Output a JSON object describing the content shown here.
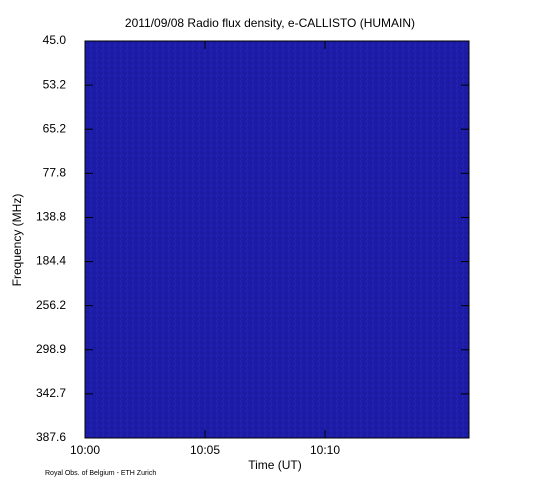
{
  "chart_data": {
    "type": "spectrogram",
    "title": "2011/09/08  Radio flux density, e-CALLISTO (HUMAIN)",
    "xlabel": "Time (UT)",
    "ylabel": "Frequency (MHz)",
    "footer": "Royal Obs. of Belgium - ETH Zurich",
    "xlim": [
      "10:00",
      "10:16"
    ],
    "xticks": [
      "10:00",
      "10:05",
      "10:10"
    ],
    "ylim": [
      45,
      387.6
    ],
    "yticks": [
      {
        "value": 45,
        "label": "45.0"
      },
      53.2,
      65.2,
      77.8,
      138.8,
      184.4,
      256.2,
      298.9,
      342.7,
      387.6
    ],
    "color": "#1c1ca8"
  }
}
